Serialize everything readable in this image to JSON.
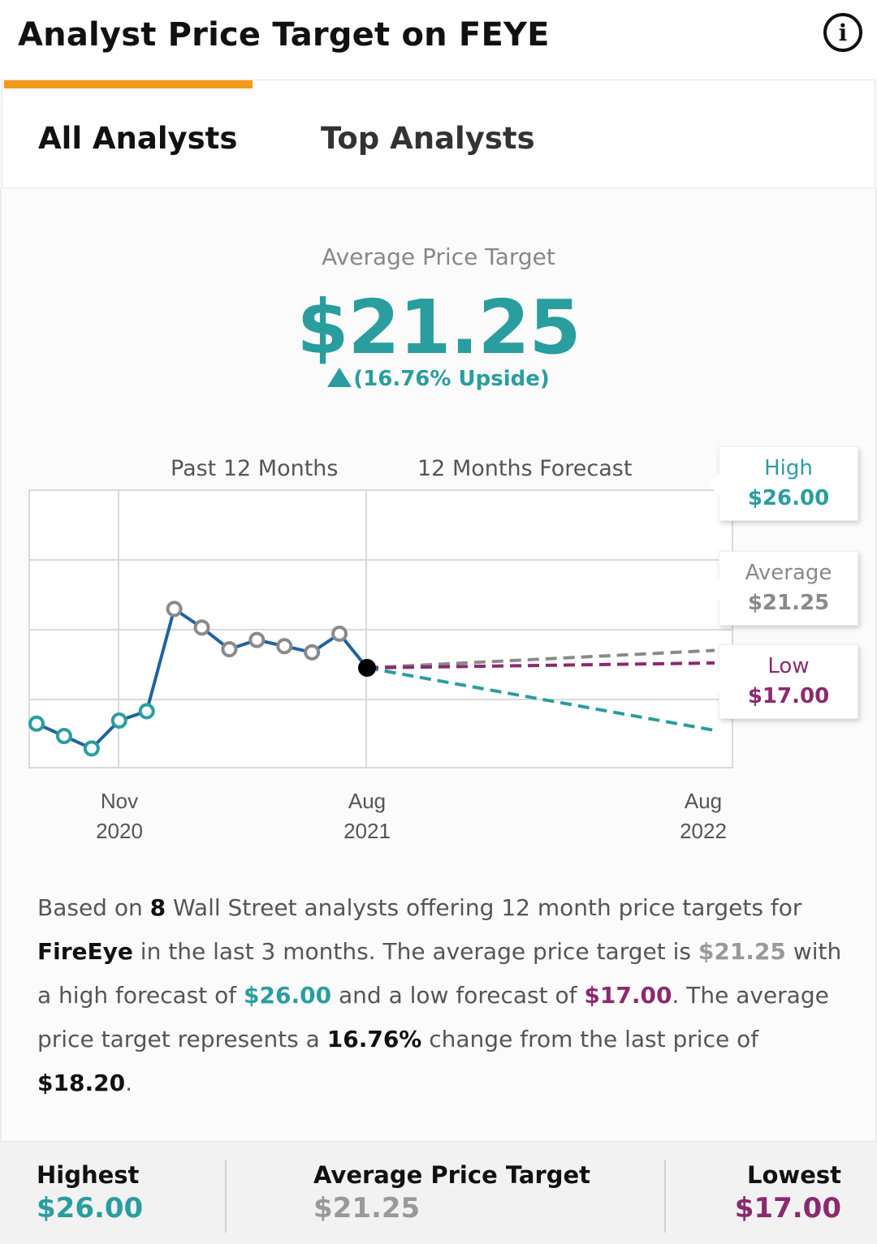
{
  "header": {
    "title": "Analyst Price Target on FEYE",
    "info_icon": "info-icon",
    "info_glyph": "i"
  },
  "tabs": [
    {
      "label": "All Analysts",
      "active": true
    },
    {
      "label": "Top Analysts",
      "active": false
    }
  ],
  "colors": {
    "accent": "#f39a1a",
    "high": "#2a9d9f",
    "average": "#8a8a8a",
    "low": "#8b2a6e",
    "line": "#1f63a0"
  },
  "summary": {
    "label": "Average Price Target",
    "value": "$21.25",
    "upside": "(16.76% Upside)"
  },
  "chart_labels": {
    "past": "Past 12 Months",
    "forecast": "12 Months Forecast",
    "x_ticks": [
      {
        "month": "Nov",
        "year": "2020"
      },
      {
        "month": "Aug",
        "year": "2021"
      },
      {
        "month": "Aug",
        "year": "2022"
      }
    ]
  },
  "callouts": {
    "high": {
      "label": "High",
      "value": "$26.00"
    },
    "average": {
      "label": "Average",
      "value": "$21.25"
    },
    "low": {
      "label": "Low",
      "value": "$17.00"
    }
  },
  "chart_data": {
    "type": "line",
    "series": [
      {
        "values": [
          16.4,
          16.0,
          15.6,
          16.5,
          16.8,
          20.1,
          19.5,
          18.8,
          19.1,
          18.9,
          18.7,
          19.3,
          18.2
        ]
      }
    ],
    "forecast": {
      "high": 26.0,
      "average": 21.25,
      "low": 17.0,
      "last_price": 18.2
    }
  },
  "description": {
    "p1": "Based on ",
    "count": "8",
    "p2": " Wall Street analysts offering 12 month price targets for ",
    "company": "FireEye",
    "p3": " in the last 3 months. The average price target is ",
    "avg": "$21.25",
    "p4": " with a high forecast of ",
    "high": "$26.00",
    "p5": " and a low forecast of ",
    "low": "$17.00",
    "p6": ". The average price target represents a ",
    "pct": "16.76%",
    "p7": " change from the last price of ",
    "last": "$18.20",
    "p8": "."
  },
  "footer": {
    "highest": {
      "label": "Highest",
      "value": "$26.00"
    },
    "average": {
      "label": "Average Price Target",
      "value": "$21.25"
    },
    "lowest": {
      "label": "Lowest",
      "value": "$17.00"
    }
  }
}
